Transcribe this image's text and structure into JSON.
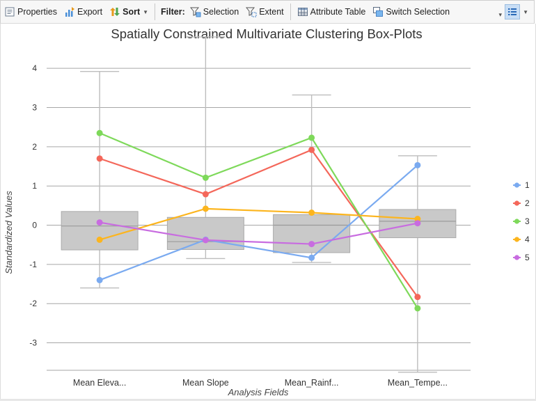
{
  "toolbar": {
    "properties_label": "Properties",
    "export_label": "Export",
    "sort_label": "Sort",
    "filter_label": "Filter:",
    "selection_label": "Selection",
    "extent_label": "Extent",
    "attribute_table_label": "Attribute Table",
    "switch_selection_label": "Switch Selection"
  },
  "colors": {
    "series_1": "#7aaaf0",
    "series_2": "#f4675a",
    "series_3": "#7ed95a",
    "series_4": "#fcb51e",
    "series_5": "#c86ce0",
    "box_fill": "#c9c9c9",
    "whisker": "#bdbdbd",
    "grid": "#a6a6a6"
  },
  "chart_data": {
    "type": "boxplot",
    "title": "Spatially Constrained Multivariate Clustering Box-Plots",
    "xlabel": "Analysis Fields",
    "ylabel": "Standardized Values",
    "ylim": [
      -3.7,
      4.5
    ],
    "yticks": [
      4,
      3,
      2,
      1,
      0,
      -1,
      -2,
      -3
    ],
    "grid": true,
    "legend_position": "right",
    "categories": [
      "Mean Eleva...",
      "Mean Slope",
      "Mean_Rainf...",
      "Mean_Tempe..."
    ],
    "boxes": [
      {
        "whisker_low": -1.6,
        "q1": -0.63,
        "median": -0.02,
        "q3": 0.35,
        "whisker_high": 3.92
      },
      {
        "whisker_low": -0.85,
        "q1": -0.62,
        "median": -0.42,
        "q3": 0.2,
        "whisker_high": 4.88
      },
      {
        "whisker_low": -0.95,
        "q1": -0.7,
        "median": 0.0,
        "q3": 0.27,
        "whisker_high": 3.32
      },
      {
        "whisker_low": -3.8,
        "q1": -0.32,
        "median": 0.1,
        "q3": 0.4,
        "whisker_high": 1.77
      }
    ],
    "series": [
      {
        "name": "1",
        "values": [
          -1.4,
          -0.37,
          -0.83,
          1.53
        ]
      },
      {
        "name": "2",
        "values": [
          1.7,
          0.79,
          1.92,
          -1.83
        ]
      },
      {
        "name": "3",
        "values": [
          2.35,
          1.21,
          2.23,
          -2.12
        ]
      },
      {
        "name": "4",
        "values": [
          -0.37,
          0.42,
          0.32,
          0.16
        ]
      },
      {
        "name": "5",
        "values": [
          0.07,
          -0.38,
          -0.48,
          0.05
        ]
      }
    ]
  }
}
